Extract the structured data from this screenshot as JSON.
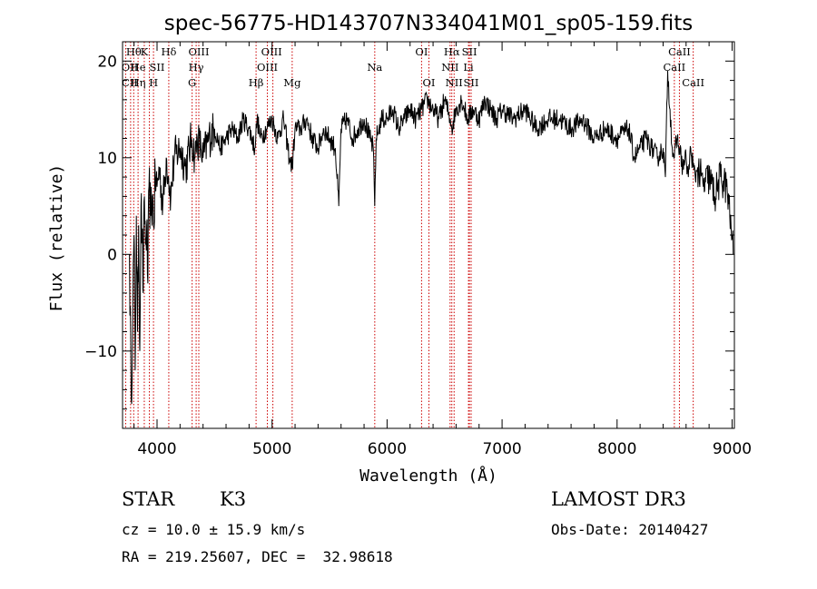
{
  "chart_data": {
    "type": "line",
    "title": "spec-56775-HD143707N334041M01_sp05-159.fits",
    "xlabel": "Wavelength (Å)",
    "ylabel": "Flux (relative)",
    "xlim": [
      3700,
      9020
    ],
    "ylim": [
      -18,
      22
    ],
    "x_ticks": [
      4000,
      5000,
      6000,
      7000,
      8000,
      9000
    ],
    "y_ticks": [
      -10,
      0,
      10,
      20
    ],
    "x_tick_labels": [
      "4000",
      "5000",
      "6000",
      "7000",
      "8000",
      "9000"
    ],
    "y_tick_labels": [
      "−10",
      "0",
      "10",
      "20"
    ],
    "grid": false,
    "series": [
      {
        "name": "flux",
        "x": [
          3760,
          3775,
          3790,
          3800,
          3810,
          3820,
          3830,
          3840,
          3850,
          3860,
          3870,
          3880,
          3890,
          3900,
          3910,
          3920,
          3930,
          3945,
          3960,
          3970,
          3985,
          4000,
          4020,
          4050,
          4080,
          4100,
          4120,
          4150,
          4200,
          4250,
          4300,
          4330,
          4350,
          4380,
          4400,
          4450,
          4500,
          4550,
          4600,
          4650,
          4700,
          4750,
          4800,
          4850,
          4870,
          4900,
          4950,
          5000,
          5050,
          5100,
          5150,
          5175,
          5200,
          5250,
          5300,
          5350,
          5400,
          5450,
          5500,
          5550,
          5580,
          5600,
          5650,
          5700,
          5750,
          5800,
          5850,
          5880,
          5893,
          5905,
          5930,
          5950,
          6000,
          6050,
          6100,
          6150,
          6200,
          6250,
          6300,
          6350,
          6400,
          6450,
          6500,
          6550,
          6563,
          6600,
          6650,
          6700,
          6750,
          6800,
          6850,
          6900,
          6950,
          7000,
          7100,
          7200,
          7300,
          7400,
          7500,
          7600,
          7700,
          7800,
          7900,
          8000,
          8100,
          8150,
          8200,
          8250,
          8300,
          8350,
          8400,
          8420,
          8440,
          8460,
          8480,
          8498,
          8520,
          8542,
          8570,
          8600,
          8620,
          8640,
          8662,
          8680,
          8700,
          8750,
          8800,
          8850,
          8900,
          8950,
          8980,
          9000,
          9010
        ],
        "y": [
          0,
          -15,
          -5,
          2,
          -12,
          4,
          -8,
          3,
          -10,
          5,
          2,
          -4,
          6,
          1,
          3,
          -3,
          7,
          4,
          6,
          3,
          8,
          7,
          9,
          5,
          10,
          8,
          6,
          10,
          11,
          9,
          12,
          10,
          12,
          11,
          10,
          12,
          13,
          11,
          12,
          13,
          12,
          14,
          13,
          11,
          14,
          12,
          13,
          14,
          12,
          14,
          10,
          9,
          13,
          13,
          14,
          12,
          11,
          13,
          12,
          11,
          5,
          13,
          14,
          12,
          13,
          14,
          12,
          11,
          5,
          12,
          13,
          14,
          14,
          15,
          13,
          14,
          15,
          14,
          15,
          16,
          15,
          14,
          16,
          14,
          13,
          15,
          16,
          14,
          15,
          14,
          16,
          15,
          14,
          15,
          14,
          15,
          13,
          14,
          14,
          13,
          14,
          12,
          13,
          12,
          13,
          10,
          11,
          12,
          11,
          10,
          11,
          8,
          19,
          15,
          11,
          10,
          12,
          11,
          9,
          10,
          8,
          11,
          9,
          8,
          9,
          7,
          8,
          6,
          8,
          7,
          4,
          2,
          0
        ]
      }
    ],
    "spectral_lines": [
      {
        "label": "Hθ",
        "x": 3797,
        "row": 0
      },
      {
        "label": "OII",
        "x": 3727,
        "row": 1
      },
      {
        "label": "CII",
        "x": 3730,
        "row": 2
      },
      {
        "label": "He",
        "x": 3835,
        "row": 1
      },
      {
        "label": "Hη",
        "x": 3835,
        "row": 2
      },
      {
        "label": "K",
        "x": 3889,
        "row": 0
      },
      {
        "label": "Hδ",
        "x": 4102,
        "row": 0
      },
      {
        "label": "SII",
        "x": 4000,
        "row": 1
      },
      {
        "label": "H",
        "x": 3969,
        "row": 2
      },
      {
        "label": "OIII",
        "x": 4363,
        "row": 0
      },
      {
        "label": "Hγ",
        "x": 4340,
        "row": 1
      },
      {
        "label": "G",
        "x": 4305,
        "row": 2
      },
      {
        "label": "OIII",
        "x": 4996,
        "row": 0
      },
      {
        "label": "OIII",
        "x": 4959,
        "row": 1
      },
      {
        "label": "Hβ",
        "x": 4861,
        "row": 2
      },
      {
        "label": "Mg",
        "x": 5175,
        "row": 2
      },
      {
        "label": "Na",
        "x": 5893,
        "row": 1
      },
      {
        "label": "OI",
        "x": 6300,
        "row": 0
      },
      {
        "label": "OI",
        "x": 6364,
        "row": 2
      },
      {
        "label": "Hα",
        "x": 6563,
        "row": 0
      },
      {
        "label": "SII",
        "x": 6716,
        "row": 0
      },
      {
        "label": "NII",
        "x": 6548,
        "row": 1
      },
      {
        "label": "Li",
        "x": 6708,
        "row": 1
      },
      {
        "label": "NII",
        "x": 6583,
        "row": 2
      },
      {
        "label": "SII",
        "x": 6731,
        "row": 2
      },
      {
        "label": "CaII",
        "x": 8542,
        "row": 0
      },
      {
        "label": "CaII",
        "x": 8498,
        "row": 1
      },
      {
        "label": "CaII",
        "x": 8662,
        "row": 2
      }
    ],
    "line_markers_x": [
      3727,
      3770,
      3797,
      3835,
      3889,
      3933,
      3969,
      4102,
      4305,
      4340,
      4363,
      4861,
      4959,
      5007,
      5175,
      5893,
      6300,
      6364,
      6548,
      6563,
      6583,
      6708,
      6716,
      6731,
      8498,
      8542,
      8662
    ],
    "colors": {
      "axis": "#000000",
      "spectrum": "#000000",
      "marker": "#cc0000",
      "background": "#ffffff"
    }
  },
  "info": {
    "class_label": "STAR",
    "subclass": "K3",
    "survey": "LAMOST DR3",
    "cz": "cz = 10.0 ± 15.9 km/s",
    "obs_date": "Obs-Date: 20140427",
    "coords": "RA = 219.25607, DEC =  32.98618"
  }
}
